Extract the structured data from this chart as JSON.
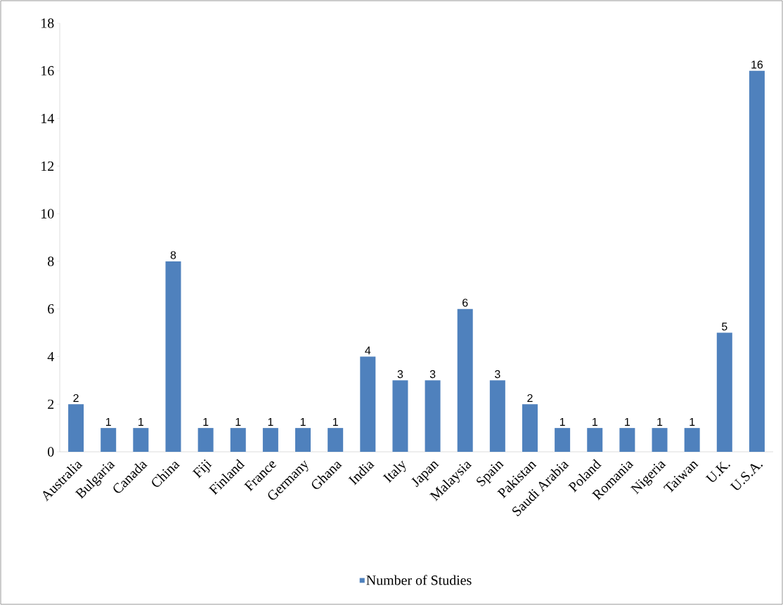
{
  "chart_data": {
    "type": "bar",
    "categories": [
      "Australia",
      "Bulgaria",
      "Canada",
      "China",
      "Fiji",
      "Finland",
      "France",
      "Germany",
      "Ghana",
      "India",
      "Italy",
      "Japan",
      "Malaysia",
      "Spain",
      "Pakistan",
      "Saudi Arabia",
      "Poland",
      "Romania",
      "Nigeria",
      "Taiwan",
      "U.K.",
      "U.S.A."
    ],
    "series": [
      {
        "name": "Number of Studies",
        "color": "#4f81bd",
        "values": [
          2,
          1,
          1,
          8,
          1,
          1,
          1,
          1,
          1,
          4,
          3,
          3,
          6,
          3,
          2,
          1,
          1,
          1,
          1,
          1,
          5,
          16
        ]
      }
    ],
    "ylim": [
      0,
      18
    ],
    "yticks": [
      0,
      2,
      4,
      6,
      8,
      10,
      12,
      14,
      16,
      18
    ],
    "data_labels": true,
    "legend": "bottom",
    "grid": false
  }
}
